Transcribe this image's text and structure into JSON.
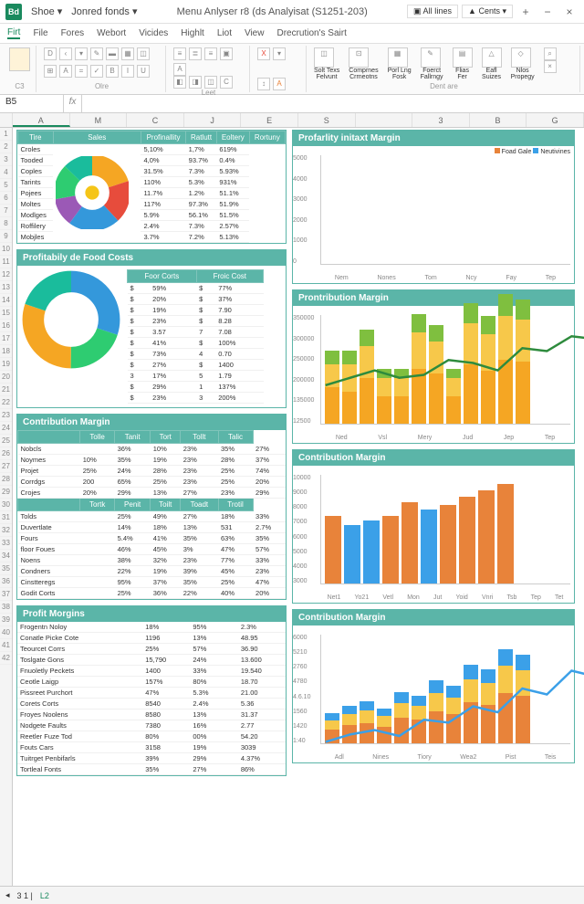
{
  "title": {
    "app": "Bd",
    "left1": "Shoe",
    "left2": "Jonred fonds",
    "center": "Menu Anlyser r8 (ds Analyisat (S1251-203)",
    "rightBtn1": "All Iines",
    "rightBtn2": "Cents"
  },
  "tabs": [
    "Firt",
    "File",
    "Fores",
    "Webort",
    "Vicides",
    "Highlt",
    "Liot",
    "View",
    "Drecrution's Sairt"
  ],
  "ribbon": {
    "groups": [
      "C3",
      "Olre",
      "Leet",
      "Dent are"
    ]
  },
  "nameBox": "B5",
  "colHeaders": [
    "A",
    "M",
    "C",
    "J",
    "E",
    "S",
    "",
    "3",
    "B",
    "G"
  ],
  "table1": {
    "headers": [
      "Tire",
      "Sales",
      "Profinallity",
      "Ratlutt",
      "Eoltery",
      "Rortuny"
    ],
    "rows": [
      [
        "Croles",
        "",
        "5,10%",
        "1,7%",
        "619%"
      ],
      [
        "Tooded",
        "",
        "4,0%",
        "93.7%",
        "0.4%"
      ],
      [
        "Coples",
        "",
        "31.5%",
        "7.3%",
        "5.93%"
      ],
      [
        "Tarints",
        "",
        "110%",
        "5.3%",
        "931%"
      ],
      [
        "Pojees",
        "",
        "11.7%",
        "1.2%",
        "51.1%"
      ],
      [
        "Moltes",
        "",
        "117%",
        "97.3%",
        "51.9%"
      ],
      [
        "Modlges",
        "",
        "5.9%",
        "56.1%",
        "51.5%"
      ],
      [
        "Roffilery",
        "",
        "2.4%",
        "7.3%",
        "2.57%"
      ],
      [
        "Mobjles",
        "",
        "3.7%",
        "7.2%",
        "5.13%"
      ]
    ],
    "pie": {
      "colors": [
        "#f5a623",
        "#e74c3c",
        "#3498db",
        "#9b59b6",
        "#2ecc71",
        "#1abc9c"
      ],
      "values": [
        20,
        18,
        22,
        12,
        15,
        13
      ]
    }
  },
  "panel2": {
    "title": "Profitabily de Food Costs",
    "headers": [
      "Foor Corts",
      "Froic Cost"
    ],
    "rows": [
      [
        "$",
        "59%",
        "$",
        "77%"
      ],
      [
        "$",
        "20%",
        "$",
        "37%"
      ],
      [
        "$",
        "19%",
        "$",
        "7.90"
      ],
      [
        "$",
        "23%",
        "$",
        "8.28"
      ],
      [
        "$",
        "3.57",
        "7",
        "7.08"
      ],
      [
        "$",
        "41%",
        "$",
        "100%"
      ],
      [
        "$",
        "73%",
        "4",
        "0.70"
      ],
      [
        "$",
        "27%",
        "$",
        "1400"
      ],
      [
        "3",
        "17%",
        "5",
        "1.79"
      ],
      [
        "$",
        "29%",
        "1",
        "137%"
      ],
      [
        "$",
        "23%",
        "3",
        "200%"
      ]
    ],
    "donut": {
      "colors": [
        "#3498db",
        "#2ecc71",
        "#f5a623",
        "#1abc9c"
      ],
      "values": [
        30,
        20,
        30,
        20
      ]
    }
  },
  "chart1": {
    "title": "Profarlity initaxt Margin",
    "legend": [
      {
        "label": "Foad Gale",
        "color": "#e8833a"
      },
      {
        "label": "Neutivines",
        "color": "#3ba0e8"
      }
    ],
    "ymax": 5000,
    "ystep": 1000,
    "categories": [
      "Nem",
      "Nones",
      "Tom",
      "Ncy",
      "Fay",
      "Tep"
    ],
    "series1": [
      2200,
      2400,
      3600,
      2900,
      3300,
      4400
    ],
    "series2": [
      0,
      0,
      3900,
      0,
      0,
      0
    ],
    "colors": [
      "#e8833a",
      "#3ba0e8"
    ]
  },
  "chart2": {
    "title": "Prontribution Margin",
    "ymax": 350000,
    "yticks": [
      "12500",
      "135000",
      "200000",
      "250000",
      "300000",
      "350000"
    ],
    "categories": [
      "Ned",
      "Vsl",
      "Mery",
      "Jud",
      "Jep",
      "Tep"
    ],
    "stacks": [
      [
        40,
        25,
        15
      ],
      [
        35,
        30,
        15
      ],
      [
        50,
        35,
        18
      ],
      [
        30,
        20,
        10
      ],
      [
        30,
        20,
        10
      ],
      [
        60,
        40,
        20
      ],
      [
        55,
        35,
        18
      ],
      [
        30,
        20,
        10
      ],
      [
        65,
        45,
        22
      ],
      [
        58,
        40,
        20
      ],
      [
        70,
        48,
        24
      ],
      [
        68,
        46,
        22
      ]
    ],
    "stackColors": [
      "#f5a623",
      "#f7c84a",
      "#7fbf3f"
    ],
    "line": [
      45,
      50,
      55,
      50,
      52,
      62,
      60,
      55,
      70,
      68,
      78,
      76
    ],
    "lineColor": "#2e8b3d"
  },
  "table3": {
    "title": "Contribution Margin",
    "headers": [
      "",
      "Tolle",
      "Tanit",
      "Tort",
      "Tollt",
      "Talic"
    ],
    "rows": [
      [
        "Nobcls",
        "",
        "36%",
        "10%",
        "23%",
        "35%",
        "27%"
      ],
      [
        "Noymes",
        "10%",
        "35%",
        "19%",
        "23%",
        "28%",
        "37%"
      ],
      [
        "Projet",
        "25%",
        "24%",
        "28%",
        "23%",
        "25%",
        "74%"
      ],
      [
        "Corrdgs",
        "200",
        "65%",
        "25%",
        "23%",
        "25%",
        "20%"
      ],
      [
        "Crojes",
        "20%",
        "29%",
        "13%",
        "27%",
        "23%",
        "29%"
      ]
    ],
    "headers2": [
      "",
      "Tortk",
      "Penit",
      "Toilt",
      "Toadt",
      "Trotil"
    ],
    "rows2": [
      [
        "Tolds",
        "",
        "25%",
        "49%",
        "27%",
        "18%",
        "33%"
      ],
      [
        "Duvertlate",
        "",
        "14%",
        "18%",
        "13%",
        "531",
        "2.7%"
      ],
      [
        "Fours",
        "",
        "5.4%",
        "41%",
        "35%",
        "63%",
        "35%"
      ],
      [
        "floor Foues",
        "",
        "46%",
        "45%",
        "3%",
        "47%",
        "57%"
      ],
      [
        "Noens",
        "",
        "38%",
        "32%",
        "23%",
        "77%",
        "33%"
      ],
      [
        "Condners",
        "",
        "22%",
        "19%",
        "39%",
        "45%",
        "23%"
      ],
      [
        "Cinstteregs",
        "",
        "95%",
        "37%",
        "35%",
        "25%",
        "47%"
      ],
      [
        "Godit Corts",
        "",
        "25%",
        "36%",
        "22%",
        "40%",
        "20%"
      ]
    ]
  },
  "chart3": {
    "title": "Contribution Margin",
    "ymax": 10000,
    "ystep": 1000,
    "categories": [
      "Net1",
      "Yo21",
      "Vetl",
      "Mon",
      "Jut",
      "Yoid",
      "Vnri",
      "Tsb",
      "Tep",
      "Tet"
    ],
    "series1": [
      6200,
      5400,
      5800,
      6200,
      7500,
      6800,
      7200,
      8000,
      8600,
      9200
    ],
    "series2": [
      0,
      4800,
      5200,
      0,
      0,
      5600,
      0,
      0,
      0,
      0
    ],
    "colors": [
      "#e8833a",
      "#3ba0e8",
      "#e8c98a"
    ]
  },
  "table4": {
    "title": "Profit Morgins",
    "rows": [
      [
        "Frogentn Noloy",
        "",
        "18%",
        "95%",
        "",
        "2.3%"
      ],
      [
        "Conatle Picke Cote",
        "",
        "1196",
        "13%",
        "",
        "48.95"
      ],
      [
        "Teourcet Corrs",
        "",
        "25%",
        "57%",
        "",
        "36.90"
      ],
      [
        "Toslgate Gons",
        "",
        "15,790",
        "24%",
        "",
        "13.600"
      ],
      [
        "Fnuoletly Peckets",
        "",
        "1400",
        "33%",
        "",
        "19.540"
      ],
      [
        "Ceotle Laigp",
        "",
        "157%",
        "80%",
        "",
        "18.70"
      ],
      [
        "Pissreet Purchort",
        "",
        "47%",
        "5.3%",
        "",
        "21.00"
      ],
      [
        "Corets Corts",
        "",
        "8540",
        "2.4%",
        "",
        "5.36"
      ],
      [
        "Froyes Noolens",
        "",
        "8580",
        "13%",
        "",
        "31.37"
      ],
      [
        "Nodgete Faults",
        "",
        "7380",
        "16%",
        "",
        "2.77"
      ],
      [
        "Reetler Fuze Tod",
        "",
        "80%",
        "00%",
        "",
        "54.20"
      ],
      [
        "Fouts Cars",
        "",
        "3158",
        "19%",
        "",
        "3039"
      ],
      [
        "Tuitrget Penbifarls",
        "",
        "39%",
        "29%",
        "",
        "4.37%"
      ],
      [
        "Tortleal Fonts",
        "",
        "35%",
        "27%",
        "",
        "86%"
      ]
    ]
  },
  "chart4": {
    "title": "Contribution Margin",
    "ymax": 6000,
    "yticks": [
      "1:40",
      "1420",
      "1560",
      "4.6.10",
      "4780",
      "2760",
      "5210",
      "6000"
    ],
    "categories": [
      "Adl",
      "Nines",
      "Tiory",
      "Wea2",
      "Pist",
      "Teis"
    ],
    "stacks": [
      [
        15,
        10,
        8
      ],
      [
        20,
        12,
        9
      ],
      [
        22,
        14,
        10
      ],
      [
        18,
        12,
        8
      ],
      [
        28,
        16,
        12
      ],
      [
        26,
        15,
        11
      ],
      [
        35,
        20,
        14
      ],
      [
        32,
        18,
        13
      ],
      [
        45,
        25,
        16
      ],
      [
        42,
        24,
        15
      ],
      [
        55,
        30,
        18
      ],
      [
        52,
        28,
        17
      ]
    ],
    "stackColors": [
      "#e8833a",
      "#f7c84a",
      "#3ba0e8",
      "#e84a9e"
    ],
    "line": [
      20,
      25,
      28,
      24,
      35,
      33,
      44,
      40,
      56,
      52,
      68,
      64
    ],
    "lineColor": "#3ba0e8"
  },
  "sheetTabs": [
    "3 1 |",
    "L2"
  ]
}
